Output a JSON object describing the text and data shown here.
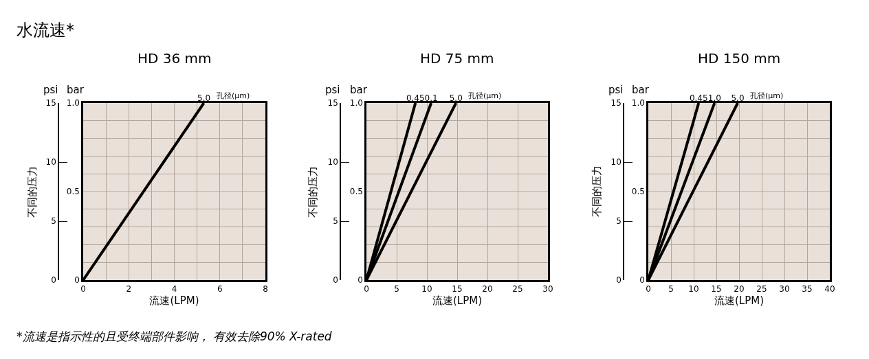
{
  "chart_data": [
    {
      "type": "line",
      "title": "HD 36 mm",
      "xlabel": "流速(LPM)",
      "ylabel": "不同的压力",
      "annotations": [
        "psi",
        "bar",
        "孔径(μm)",
        "水流速*",
        "*流速是指示性的且受终端部件影响， 有效去除90% X-rated"
      ],
      "series": [
        {
          "name": "5.0",
          "color": "#000000",
          "x": [
            0,
            5.3
          ],
          "values": [
            0,
            15
          ]
        }
      ],
      "xlim": [
        0,
        8
      ],
      "xticks": [
        0,
        {
          "value": 1,
          "label": null
        },
        2,
        {
          "value": 3,
          "label": null
        },
        4,
        {
          "value": 5,
          "label": null
        },
        6,
        {
          "value": 7,
          "label": null
        },
        8
      ],
      "ylim": [
        0,
        15
      ],
      "yticks": [
        0,
        5,
        10,
        15
      ],
      "y2lim": [
        0,
        1
      ],
      "y2ticks": [
        0,
        {
          "value": 0.1,
          "label": null
        },
        {
          "value": 0.2,
          "label": null
        },
        {
          "value": 0.3,
          "label": null
        },
        {
          "value": 0.4,
          "label": null
        },
        0.5,
        {
          "value": 0.6,
          "label": null
        },
        {
          "value": 0.7,
          "label": null
        },
        {
          "value": 0.8,
          "label": null
        },
        {
          "value": 0.9,
          "label": null
        },
        {
          "value": 1,
          "label": "1.0"
        }
      ],
      "grid": true,
      "marker": "none",
      "line_style": "solid"
    },
    {
      "type": "line",
      "title": "HD 75 mm",
      "xlabel": "流速(LPM)",
      "ylabel": "不同的压力",
      "annotations": [
        "psi",
        "bar",
        "孔径(μm)"
      ],
      "series": [
        {
          "name": "0.45",
          "color": "#000000",
          "x": [
            0,
            8.1
          ],
          "values": [
            0,
            15
          ]
        },
        {
          "name": "0.1",
          "color": "#000000",
          "x": [
            0,
            10.7
          ],
          "values": [
            0,
            15
          ]
        },
        {
          "name": "5.0",
          "color": "#000000",
          "x": [
            0,
            14.8
          ],
          "values": [
            0,
            15
          ]
        }
      ],
      "xlim": [
        0,
        30
      ],
      "xticks": [
        0,
        5,
        10,
        15,
        20,
        25,
        30
      ],
      "ylim": [
        0,
        15
      ],
      "yticks": [
        0,
        5,
        10,
        15
      ],
      "y2lim": [
        0,
        1
      ],
      "y2ticks": [
        0,
        {
          "value": 0.1,
          "label": null
        },
        {
          "value": 0.2,
          "label": null
        },
        {
          "value": 0.3,
          "label": null
        },
        {
          "value": 0.4,
          "label": null
        },
        0.5,
        {
          "value": 0.6,
          "label": null
        },
        {
          "value": 0.7,
          "label": null
        },
        {
          "value": 0.8,
          "label": null
        },
        {
          "value": 0.9,
          "label": null
        },
        {
          "value": 1,
          "label": "1.0"
        }
      ],
      "grid": true,
      "marker": "none",
      "line_style": "solid"
    },
    {
      "type": "line",
      "title": "HD 150 mm",
      "xlabel": "流速(LPM)",
      "ylabel": "不同的压力",
      "annotations": [
        "psi",
        "bar",
        "孔径(μm)"
      ],
      "series": [
        {
          "name": "0.45",
          "color": "#000000",
          "x": [
            0,
            11.1
          ],
          "values": [
            0,
            15
          ]
        },
        {
          "name": "1.0",
          "color": "#000000",
          "x": [
            0,
            14.6
          ],
          "values": [
            0,
            15
          ]
        },
        {
          "name": "5.0",
          "color": "#000000",
          "x": [
            0,
            19.7
          ],
          "values": [
            0,
            15
          ]
        }
      ],
      "xlim": [
        0,
        40
      ],
      "xticks": [
        0,
        5,
        10,
        15,
        20,
        25,
        30,
        35,
        40
      ],
      "ylim": [
        0,
        15
      ],
      "yticks": [
        0,
        5,
        10,
        15
      ],
      "y2lim": [
        0,
        1
      ],
      "y2ticks": [
        0,
        {
          "value": 0.1,
          "label": null
        },
        {
          "value": 0.2,
          "label": null
        },
        {
          "value": 0.3,
          "label": null
        },
        {
          "value": 0.4,
          "label": null
        },
        0.5,
        {
          "value": 0.6,
          "label": null
        },
        {
          "value": 0.7,
          "label": null
        },
        {
          "value": 0.8,
          "label": null
        },
        {
          "value": 0.9,
          "label": null
        },
        {
          "value": 1,
          "label": "1.0"
        }
      ],
      "grid": true,
      "marker": "none",
      "line_style": "solid"
    }
  ]
}
